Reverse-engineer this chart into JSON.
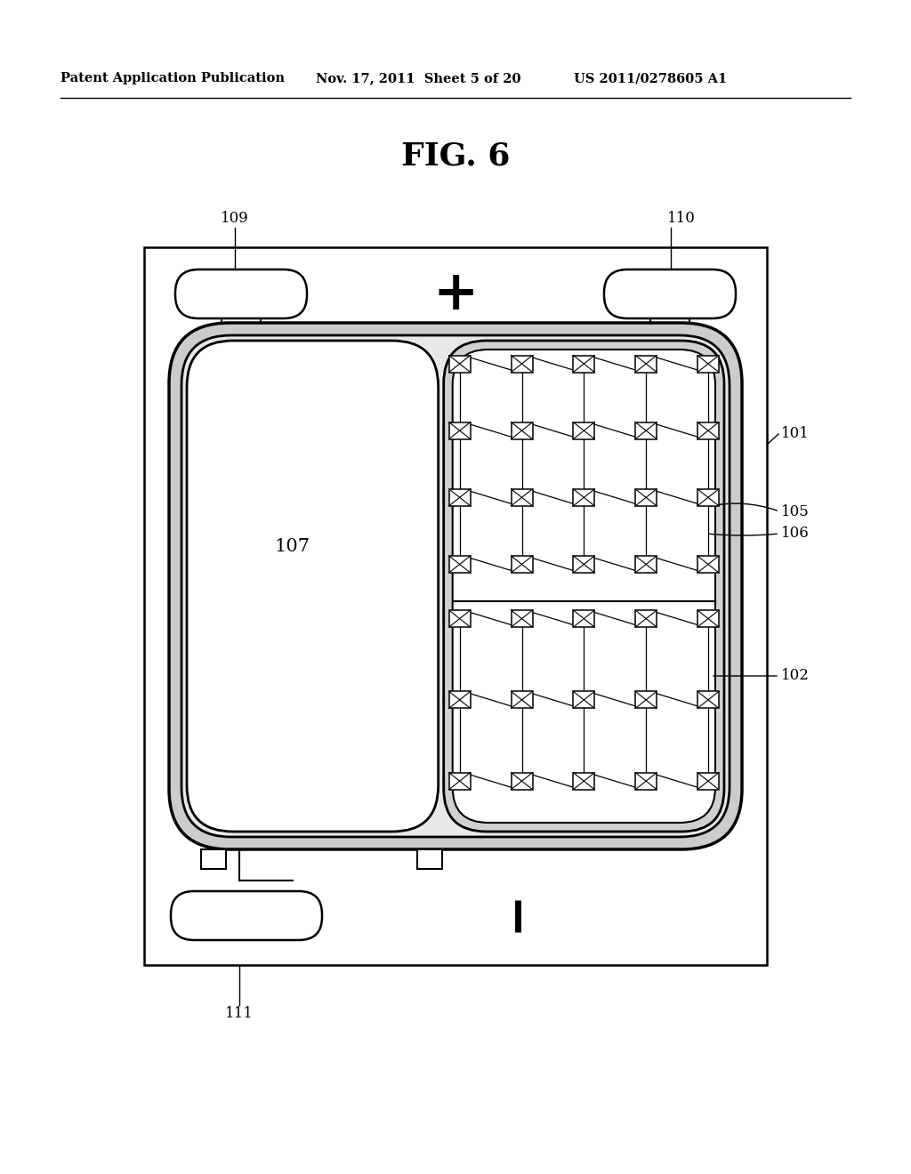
{
  "title": "FIG. 6",
  "header_left": "Patent Application Publication",
  "header_mid": "Nov. 17, 2011  Sheet 5 of 20",
  "header_right": "US 2011/0278605 A1",
  "bg_color": "#ffffff",
  "line_color": "#000000",
  "label_101": "101",
  "label_102": "102",
  "label_105": "105",
  "label_106": "106",
  "label_107": "107",
  "label_109": "109",
  "label_110": "110",
  "label_111": "111"
}
